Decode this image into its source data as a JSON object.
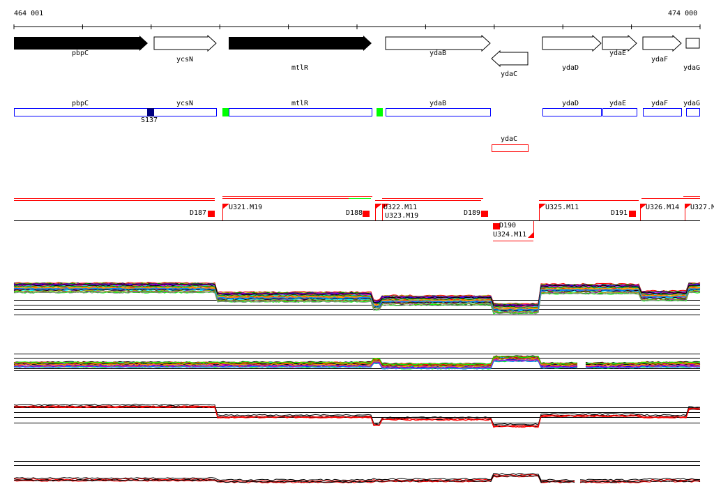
{
  "ruler": {
    "start": "464 001",
    "end": "474 000"
  },
  "genes": [
    {
      "name": "pbpC",
      "strand": "+",
      "style": "filled"
    },
    {
      "name": "ycsN",
      "strand": "+",
      "style": "open"
    },
    {
      "name": "mtlR",
      "strand": "+",
      "style": "filled"
    },
    {
      "name": "ydaB",
      "strand": "+",
      "style": "open"
    },
    {
      "name": "ydaC",
      "strand": "-",
      "style": "open"
    },
    {
      "name": "ydaD",
      "strand": "+",
      "style": "open"
    },
    {
      "name": "ydaE",
      "strand": "+",
      "style": "open"
    },
    {
      "name": "ydaF",
      "strand": "+",
      "style": "open"
    },
    {
      "name": "ydaG",
      "strand": "+",
      "style": "open"
    }
  ],
  "site_label": "S137",
  "features": {
    "downstream": [
      "D187",
      "D188",
      "D189",
      "D190",
      "D191"
    ],
    "upstream": [
      "U321.M19",
      "U322.M11",
      "U323.M19",
      "U324.M11",
      "U325.M11",
      "U326.M14",
      "U327.M"
    ]
  },
  "colors": {
    "gene_box": "#0000ff",
    "site": "#000080",
    "green": "#00ff00",
    "red": "#ff0000"
  }
}
